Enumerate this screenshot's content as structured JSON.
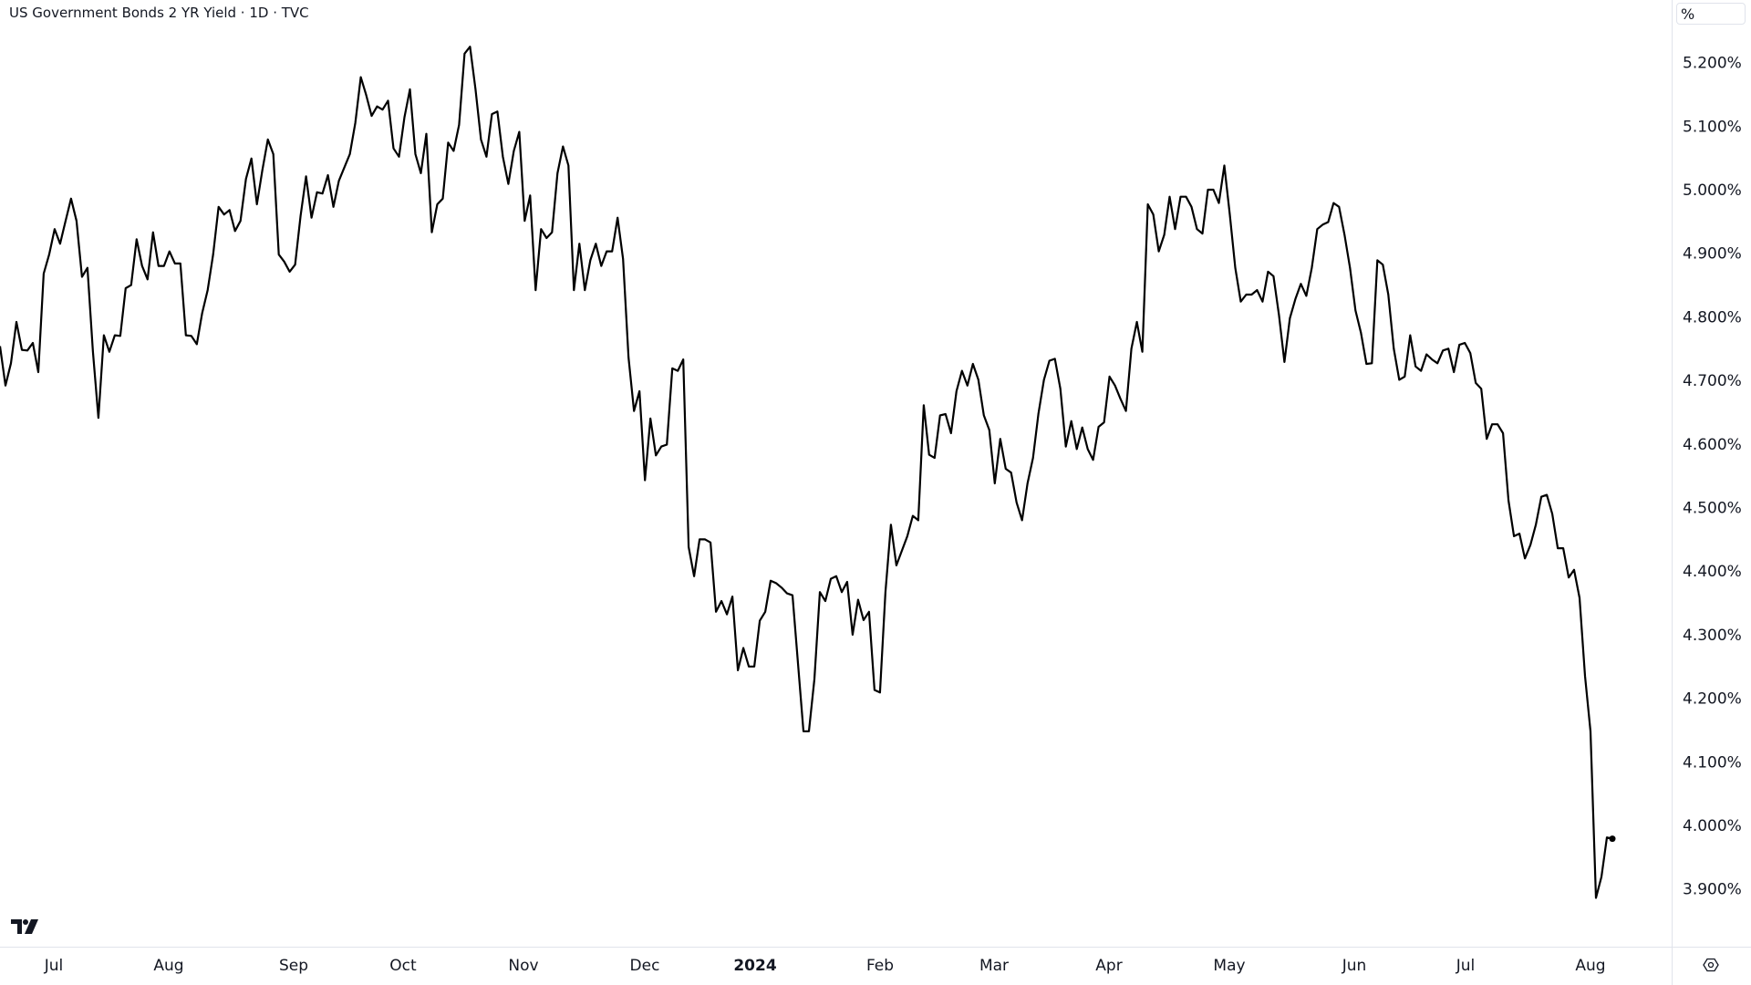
{
  "header": {
    "title": "US Government Bonds 2 YR Yield · 1D · TVC",
    "unit_selector": "%"
  },
  "colors": {
    "line": "#000000",
    "grid_separator": "#e0e3eb",
    "text": "#131722",
    "background": "#ffffff"
  },
  "icons": {
    "logo": "tradingview-logo",
    "settings": "settings-gear-icon"
  },
  "chart_data": {
    "type": "line",
    "title": "US Government Bonds 2 YR Yield · 1D · TVC",
    "xlabel": "",
    "ylabel": "",
    "ylim": [
      3.82,
      5.26
    ],
    "grid": false,
    "y_ticks": [
      5.2,
      5.1,
      5.0,
      4.9,
      4.8,
      4.7,
      4.6,
      4.5,
      4.4,
      4.3,
      4.2,
      4.1,
      4.0,
      3.9
    ],
    "y_tick_labels": [
      "5.200%",
      "5.100%",
      "5.000%",
      "4.900%",
      "4.800%",
      "4.700%",
      "4.600%",
      "4.500%",
      "4.400%",
      "4.300%",
      "4.200%",
      "4.100%",
      "4.000%",
      "3.900%"
    ],
    "x_tick_labels": [
      "Jul",
      "Aug",
      "Sep",
      "Oct",
      "Nov",
      "Dec",
      "2024",
      "Feb",
      "Mar",
      "Apr",
      "May",
      "Jun",
      "Jul",
      "Aug"
    ],
    "series": [
      {
        "values": [
          4.754,
          4.692,
          4.727,
          4.792,
          4.748,
          4.747,
          4.759,
          4.713,
          4.868,
          4.898,
          4.938,
          4.915,
          4.951,
          4.986,
          4.951,
          4.863,
          4.877,
          4.745,
          4.641,
          4.771,
          4.745,
          4.771,
          4.77,
          4.845,
          4.85,
          4.922,
          4.88,
          4.859,
          4.933,
          4.88,
          4.88,
          4.903,
          4.884,
          4.884,
          4.771,
          4.77,
          4.757,
          4.806,
          4.842,
          4.898,
          4.973,
          4.961,
          4.968,
          4.935,
          4.951,
          5.017,
          5.049,
          4.977,
          5.031,
          5.079,
          5.056,
          4.898,
          4.887,
          4.871,
          4.882,
          4.959,
          5.021,
          4.956,
          4.996,
          4.994,
          5.023,
          4.973,
          5.014,
          5.035,
          5.056,
          5.105,
          5.177,
          5.149,
          5.116,
          5.131,
          5.126,
          5.14,
          5.065,
          5.052,
          5.114,
          5.158,
          5.056,
          5.026,
          5.088,
          4.933,
          4.977,
          4.986,
          5.074,
          5.061,
          5.102,
          5.214,
          5.225,
          5.158,
          5.079,
          5.052,
          5.119,
          5.123,
          5.052,
          5.009,
          5.061,
          5.091,
          4.951,
          4.991,
          4.842,
          4.938,
          4.924,
          4.933,
          5.026,
          5.068,
          5.038,
          4.842,
          4.915,
          4.842,
          4.889,
          4.915,
          4.88,
          4.903,
          4.903,
          4.956,
          4.891,
          4.736,
          4.652,
          4.683,
          4.543,
          4.64,
          4.582,
          4.596,
          4.599,
          4.719,
          4.715,
          4.733,
          4.438,
          4.392,
          4.45,
          4.45,
          4.445,
          4.336,
          4.353,
          4.332,
          4.36,
          4.244,
          4.279,
          4.25,
          4.25,
          4.322,
          4.336,
          4.385,
          4.381,
          4.374,
          4.365,
          4.362,
          4.255,
          4.148,
          4.148,
          4.23,
          4.367,
          4.353,
          4.388,
          4.392,
          4.367,
          4.383,
          4.3,
          4.355,
          4.323,
          4.336,
          4.213,
          4.209,
          4.367,
          4.473,
          4.409,
          4.432,
          4.455,
          4.487,
          4.48,
          4.661,
          4.583,
          4.578,
          4.645,
          4.647,
          4.617,
          4.683,
          4.715,
          4.692,
          4.726,
          4.701,
          4.645,
          4.622,
          4.538,
          4.608,
          4.561,
          4.555,
          4.508,
          4.48,
          4.538,
          4.578,
          4.648,
          4.701,
          4.731,
          4.734,
          4.687,
          4.596,
          4.636,
          4.592,
          4.626,
          4.592,
          4.575,
          4.627,
          4.634,
          4.706,
          4.692,
          4.671,
          4.652,
          4.75,
          4.792,
          4.745,
          4.977,
          4.961,
          4.903,
          4.929,
          4.989,
          4.938,
          4.989,
          4.989,
          4.973,
          4.938,
          4.931,
          5.0,
          5.0,
          4.979,
          5.038,
          4.961,
          4.877,
          4.824,
          4.835,
          4.835,
          4.842,
          4.824,
          4.871,
          4.864,
          4.803,
          4.729,
          4.798,
          4.828,
          4.852,
          4.833,
          4.877,
          4.938,
          4.945,
          4.949,
          4.979,
          4.973,
          4.929,
          4.877,
          4.81,
          4.775,
          4.726,
          4.727,
          4.889,
          4.882,
          4.835,
          4.75,
          4.701,
          4.706,
          4.771,
          4.722,
          4.715,
          4.741,
          4.733,
          4.727,
          4.747,
          4.75,
          4.713,
          4.756,
          4.759,
          4.743,
          4.696,
          4.687,
          4.608,
          4.631,
          4.631,
          4.617,
          4.511,
          4.455,
          4.459,
          4.42,
          4.441,
          4.473,
          4.517,
          4.52,
          4.49,
          4.436,
          4.436,
          4.39,
          4.402,
          4.358,
          4.235,
          4.148,
          3.886,
          3.919,
          3.981,
          3.979
        ]
      }
    ]
  }
}
